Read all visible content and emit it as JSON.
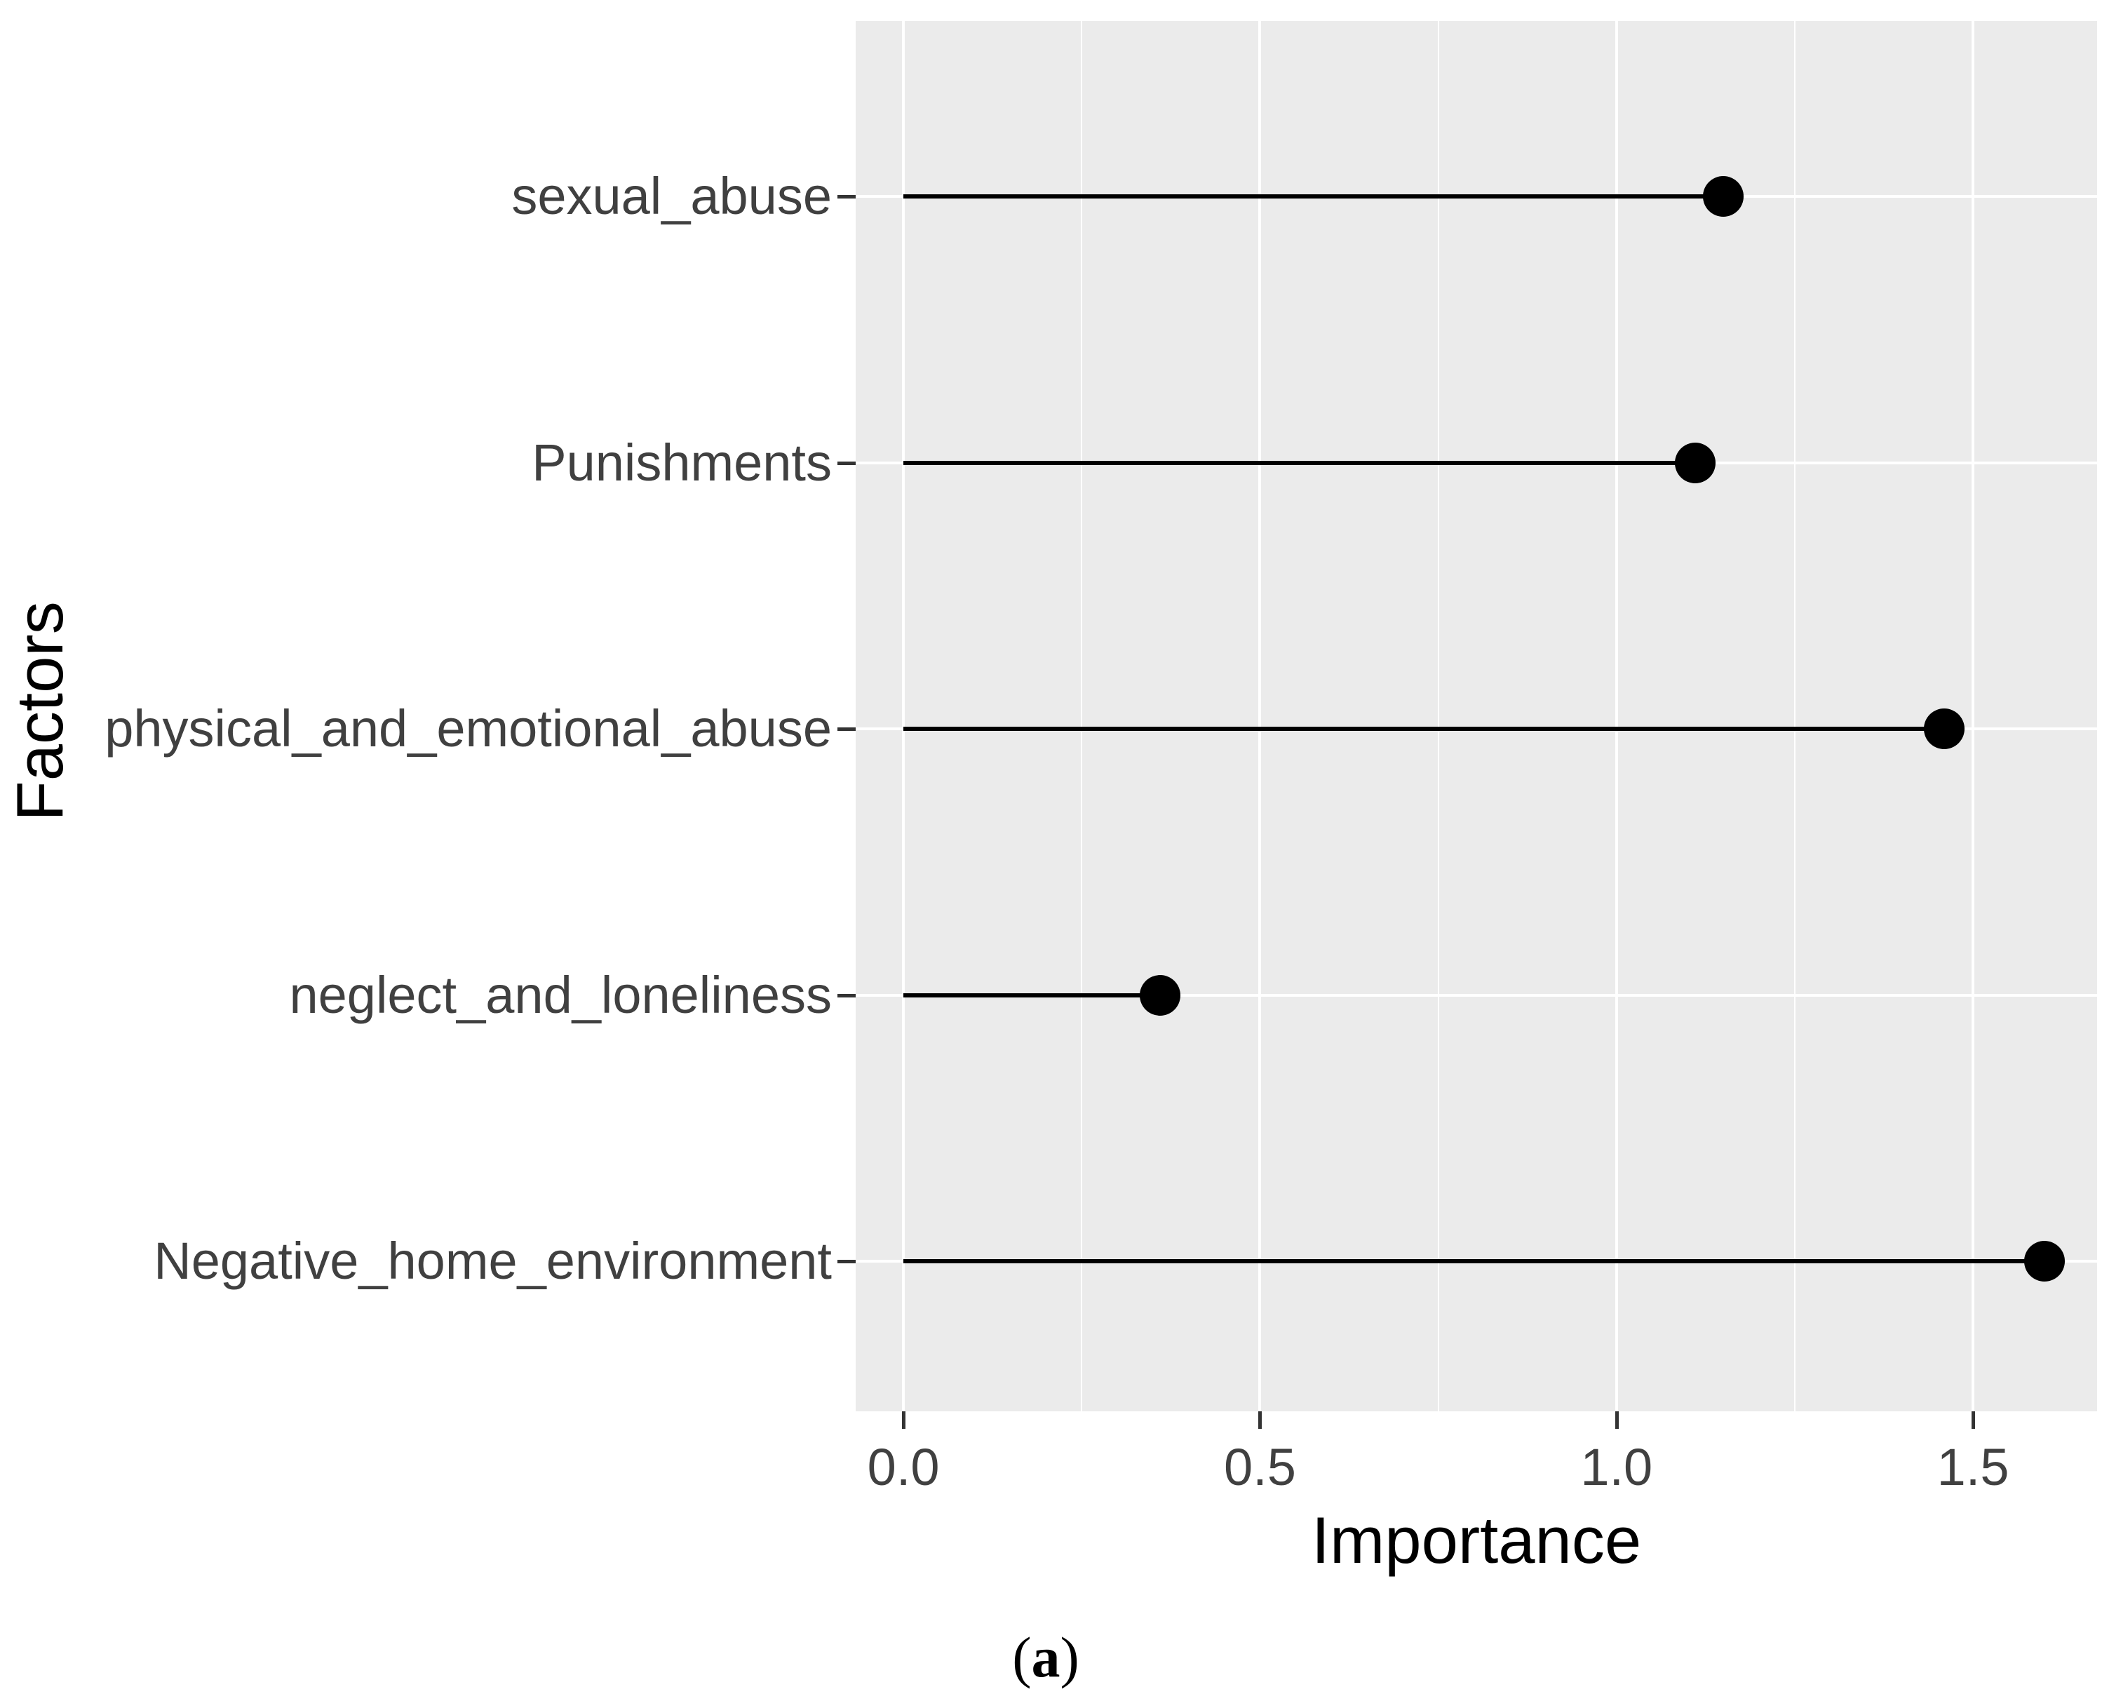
{
  "figure": {
    "caption_prefix": "(",
    "caption_letter": "a",
    "caption_suffix": ")",
    "colors": {
      "page_bg": "#FFFFFF",
      "panel_bg": "#EBEBEB",
      "gridline": "#FFFFFF",
      "axis_text": "#404040",
      "axis_title": "#000000",
      "tick_mark": "#333333",
      "data_mark": "#000000"
    }
  },
  "chart_data": {
    "type": "lollipop",
    "orientation": "horizontal",
    "title": "",
    "xlabel": "Importance",
    "ylabel": "Factors",
    "categories": [
      "sexual_abuse",
      "Punishments",
      "physical_and_emotional_abuse",
      "neglect_and_loneliness",
      "Negative_home_environment"
    ],
    "values": [
      1.15,
      1.11,
      1.46,
      0.36,
      1.6
    ],
    "stem_start": 0.0,
    "x_tick_labels": [
      "0.0",
      "0.5",
      "1.0",
      "1.5"
    ],
    "x_tick_values": [
      0.0,
      0.5,
      1.0,
      1.5
    ],
    "x_minor_tick_values": [
      0.25,
      0.75,
      1.25
    ],
    "xlim": [
      -0.067,
      1.674
    ],
    "grid": "major-and-minor-vertical, major-horizontal",
    "legend_position": "none",
    "point_color": "#000000"
  }
}
